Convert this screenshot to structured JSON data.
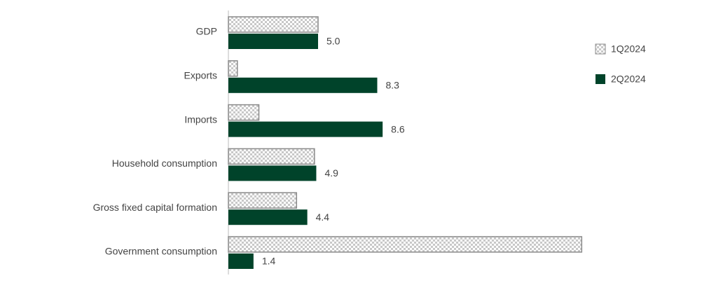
{
  "chart_data": {
    "type": "hbar",
    "categories": [
      "GDP",
      "Exports",
      "Imports",
      "Household consumption",
      "Gross fixed capital formation",
      "Government consumption"
    ],
    "series": [
      {
        "name": "1Q2024",
        "color": "#8a8a8a",
        "pattern": "checker",
        "values": [
          5.0,
          0.5,
          1.7,
          4.8,
          3.8,
          19.7
        ]
      },
      {
        "name": "2Q2024",
        "color": "#00432a",
        "values": [
          5.0,
          8.3,
          8.6,
          4.9,
          4.4,
          1.4
        ],
        "value_labels": [
          "5.0",
          "8.3",
          "8.6",
          "4.9",
          "4.4",
          "1.4"
        ]
      }
    ],
    "xlim": [
      0,
      20
    ],
    "legend": "right"
  }
}
